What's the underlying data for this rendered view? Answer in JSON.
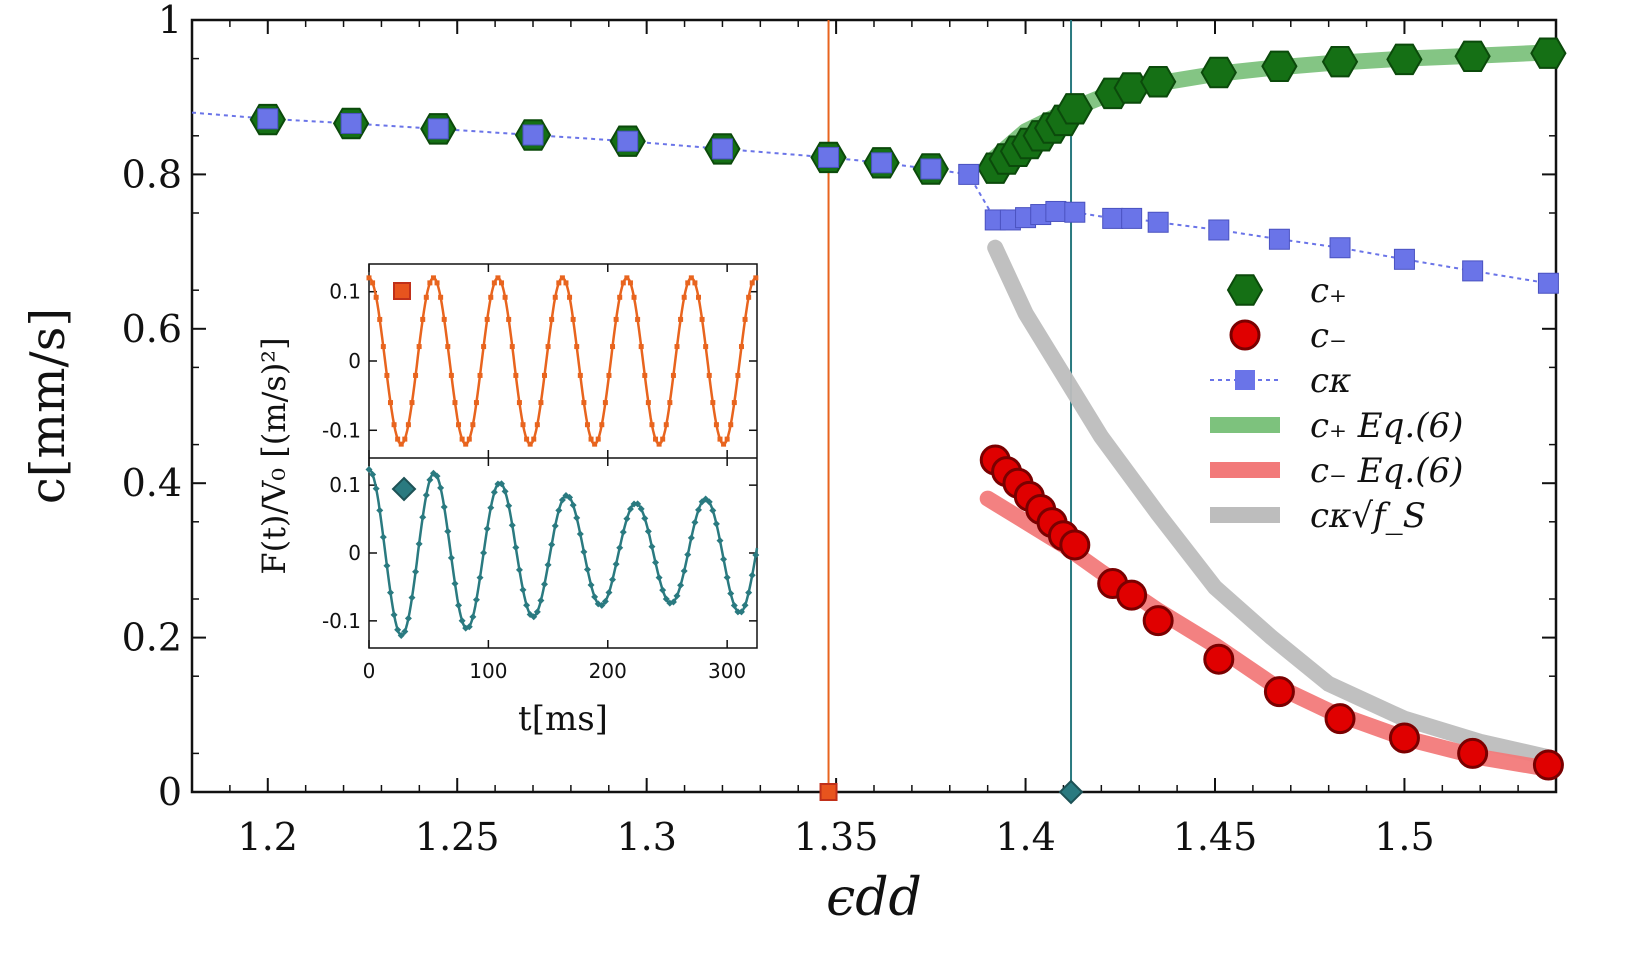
{
  "chart_data": {
    "type": "scatter",
    "xlabel": "ϵdd",
    "ylabel": "c[mm/s]",
    "xlim": [
      1.18,
      1.54
    ],
    "ylim": [
      0,
      1
    ],
    "xticks": [
      1.2,
      1.25,
      1.3,
      1.35,
      1.4,
      1.45,
      1.5
    ],
    "xtick_labels": [
      "1.2",
      "1.25",
      "1.3",
      "1.35",
      "1.4",
      "1.45",
      "1.5"
    ],
    "yticks": [
      0,
      0.2,
      0.4,
      0.6,
      0.8,
      1
    ],
    "ytick_labels": [
      "0",
      "0.2",
      "0.4",
      "0.6",
      "0.8",
      "1"
    ],
    "vertical_lines": [
      {
        "x": 1.348,
        "color": "#e8641e",
        "marker": "square",
        "marker_color": "#e8541e"
      },
      {
        "x": 1.412,
        "color": "#2a7a80",
        "marker": "diamond",
        "marker_color": "#2a7a80"
      }
    ],
    "series": [
      {
        "name": "c+",
        "kind": "marker",
        "marker": "hexagon",
        "color": "#157015",
        "legend": "c₊",
        "x": [
          1.2,
          1.222,
          1.245,
          1.27,
          1.295,
          1.32,
          1.348,
          1.362,
          1.375,
          1.392,
          1.395,
          1.398,
          1.401,
          1.404,
          1.407,
          1.41,
          1.413,
          1.423,
          1.428,
          1.435,
          1.451,
          1.467,
          1.483,
          1.5,
          1.518,
          1.538
        ],
        "y": [
          0.871,
          0.866,
          0.859,
          0.851,
          0.843,
          0.833,
          0.822,
          0.815,
          0.807,
          0.808,
          0.82,
          0.83,
          0.84,
          0.85,
          0.86,
          0.87,
          0.885,
          0.905,
          0.912,
          0.92,
          0.932,
          0.94,
          0.946,
          0.949,
          0.953,
          0.957
        ]
      },
      {
        "name": "c-",
        "kind": "marker",
        "marker": "circle",
        "color": "#e00000",
        "legend": "c₋",
        "x": [
          1.392,
          1.395,
          1.398,
          1.401,
          1.404,
          1.407,
          1.41,
          1.413,
          1.423,
          1.428,
          1.435,
          1.451,
          1.467,
          1.483,
          1.5,
          1.518,
          1.538
        ],
        "y": [
          0.43,
          0.415,
          0.4,
          0.383,
          0.366,
          0.349,
          0.332,
          0.32,
          0.27,
          0.255,
          0.222,
          0.172,
          0.13,
          0.095,
          0.07,
          0.05,
          0.035
        ]
      },
      {
        "name": "cκ",
        "kind": "marker-line",
        "marker": "square",
        "color": "#6a74e8",
        "legend": "cκ",
        "x": [
          1.18,
          1.2,
          1.222,
          1.245,
          1.27,
          1.295,
          1.32,
          1.348,
          1.362,
          1.375,
          1.385,
          1.392,
          1.396,
          1.4,
          1.404,
          1.408,
          1.413,
          1.423,
          1.428,
          1.435,
          1.451,
          1.467,
          1.483,
          1.5,
          1.518,
          1.538
        ],
        "y": [
          0.88,
          0.872,
          0.866,
          0.859,
          0.851,
          0.843,
          0.833,
          0.822,
          0.815,
          0.807,
          0.8,
          0.741,
          0.741,
          0.744,
          0.748,
          0.752,
          0.751,
          0.743,
          0.743,
          0.738,
          0.728,
          0.716,
          0.705,
          0.69,
          0.675,
          0.659
        ]
      },
      {
        "name": "c+ Eq.(6)",
        "kind": "band",
        "color": "#7dc27d",
        "legend": "c₊ Eq.(6)",
        "x": [
          1.392,
          1.4,
          1.41,
          1.42,
          1.435,
          1.45,
          1.465,
          1.48,
          1.5,
          1.52,
          1.538
        ],
        "y": [
          0.822,
          0.856,
          0.88,
          0.9,
          0.918,
          0.93,
          0.938,
          0.944,
          0.95,
          0.954,
          0.958
        ]
      },
      {
        "name": "c- Eq.(6)",
        "kind": "band",
        "color": "#f27a7a",
        "legend": "c₋ Eq.(6)",
        "x": [
          1.39,
          1.4,
          1.41,
          1.42,
          1.435,
          1.45,
          1.465,
          1.48,
          1.5,
          1.52,
          1.538
        ],
        "y": [
          0.38,
          0.35,
          0.32,
          0.285,
          0.235,
          0.19,
          0.14,
          0.105,
          0.07,
          0.045,
          0.03
        ]
      },
      {
        "name": "cκ sqrt(fS)",
        "kind": "band",
        "color": "#bdbdbd",
        "legend": "cκ√f_S",
        "x": [
          1.392,
          1.4,
          1.41,
          1.42,
          1.435,
          1.45,
          1.465,
          1.48,
          1.5,
          1.52,
          1.538
        ],
        "y": [
          0.705,
          0.62,
          0.54,
          0.46,
          0.36,
          0.265,
          0.2,
          0.14,
          0.095,
          0.065,
          0.045
        ]
      }
    ],
    "inset": {
      "ylabel": "F(t)/V₀ [(m/s)²]",
      "xlabel": "t[ms]",
      "xlim": [
        0,
        325
      ],
      "xticks": [
        0,
        100,
        200,
        300
      ],
      "xtick_labels": [
        "0",
        "100",
        "200",
        "300"
      ],
      "ylim": [
        -0.14,
        0.14
      ],
      "yticks": [
        0.1,
        0,
        -0.1
      ],
      "ytick_labels": [
        "0.1",
        "0",
        "-0.1"
      ],
      "top_panel": {
        "color": "#e8641e",
        "marker": "square",
        "amplitude": 0.12,
        "period_ms": 54
      },
      "bottom_panel": {
        "color": "#2a7a80",
        "marker": "diamond",
        "components": [
          0.098,
          0.025
        ],
        "periods_ms": [
          56,
          50
        ]
      }
    }
  }
}
